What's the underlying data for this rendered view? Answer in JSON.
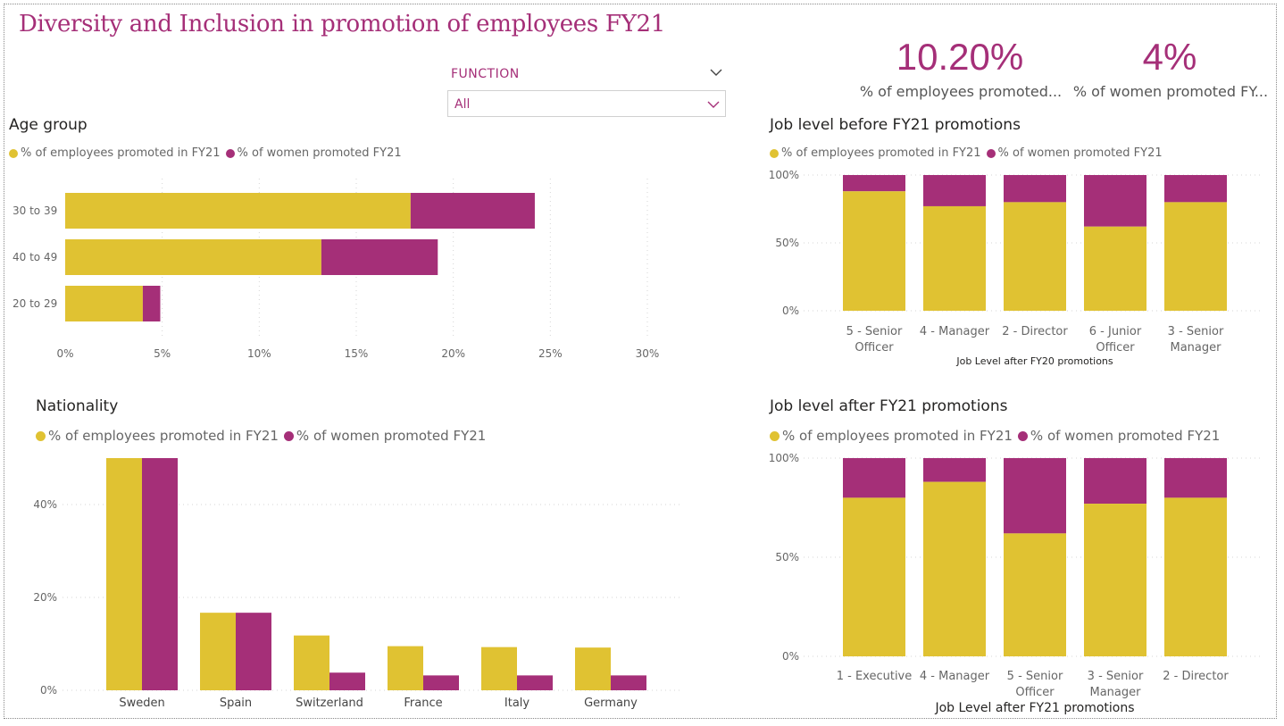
{
  "page_title": "Diversity and Inclusion in promotion of employees FY21",
  "colors": {
    "employees": "#e0c232",
    "women": "#a52f78",
    "accent": "#a52f78"
  },
  "kpis": [
    {
      "value": "10.20%",
      "label": "% of employees promoted..."
    },
    {
      "value": "4%",
      "label": "% of women promoted FY..."
    }
  ],
  "slicer": {
    "title": "FUNCTION",
    "value": "All"
  },
  "legend": {
    "employees": "% of employees promoted in FY21",
    "women": "% of women promoted FY21"
  },
  "chart_data": [
    {
      "id": "age",
      "type": "bar",
      "orientation": "horizontal",
      "stacked": true,
      "title": "Age group",
      "categories": [
        "30 to 39",
        "40 to 49",
        "20 to 29"
      ],
      "series": [
        {
          "name": "% of employees promoted in FY21",
          "values": [
            17.8,
            13.2,
            4.0
          ]
        },
        {
          "name": "% of women promoted FY21",
          "values": [
            6.4,
            6.0,
            0.9
          ]
        }
      ],
      "xlim": [
        0,
        30
      ],
      "xticks": [
        "0%",
        "5%",
        "10%",
        "15%",
        "20%",
        "25%",
        "30%"
      ],
      "grid": true,
      "legend": "top-left"
    },
    {
      "id": "jobBefore",
      "type": "bar",
      "stacked": true,
      "percent": true,
      "title": "Job level before FY21 promotions",
      "categories": [
        [
          "5 - Senior",
          "Officer"
        ],
        [
          "4 - Manager"
        ],
        [
          "2 - Director"
        ],
        [
          "6 - Junior",
          "Officer"
        ],
        [
          "3 - Senior",
          "Manager"
        ]
      ],
      "series": [
        {
          "name": "% of employees promoted in FY21",
          "values": [
            88,
            77,
            80,
            62,
            80
          ]
        },
        {
          "name": "% of women promoted FY21",
          "values": [
            12,
            23,
            20,
            38,
            20
          ]
        }
      ],
      "xlabel": "Job Level after FY20 promotions",
      "yticks": [
        "0%",
        "50%",
        "100%"
      ],
      "grid": true,
      "legend": "top-left"
    },
    {
      "id": "nationality",
      "type": "bar",
      "grouped": true,
      "title": "Nationality",
      "categories": [
        "Sweden",
        "Spain",
        "Switzerland",
        "France",
        "Italy",
        "Germany"
      ],
      "series": [
        {
          "name": "% of employees promoted in FY21",
          "values": [
            50,
            16.7,
            11.8,
            9.5,
            9.3,
            9.2
          ]
        },
        {
          "name": "% of women promoted FY21",
          "values": [
            50,
            16.7,
            3.8,
            3.2,
            3.2,
            3.2
          ]
        }
      ],
      "ylim": [
        0,
        50
      ],
      "yticks": [
        "0%",
        "20%",
        "40%"
      ],
      "grid": true,
      "legend": "top-left"
    },
    {
      "id": "jobAfter",
      "type": "bar",
      "stacked": true,
      "percent": true,
      "title": "Job level after FY21 promotions",
      "categories": [
        [
          "1 - Executive"
        ],
        [
          "4 - Manager"
        ],
        [
          "5 - Senior",
          "Officer"
        ],
        [
          "3 - Senior",
          "Manager"
        ],
        [
          "2 - Director"
        ]
      ],
      "series": [
        {
          "name": "% of employees promoted in FY21",
          "values": [
            80,
            88,
            62,
            77,
            80
          ]
        },
        {
          "name": "% of women promoted FY21",
          "values": [
            20,
            12,
            38,
            23,
            20
          ]
        }
      ],
      "xlabel": "Job Level after FY21 promotions",
      "yticks": [
        "0%",
        "50%",
        "100%"
      ],
      "grid": true,
      "legend": "top-left"
    }
  ]
}
